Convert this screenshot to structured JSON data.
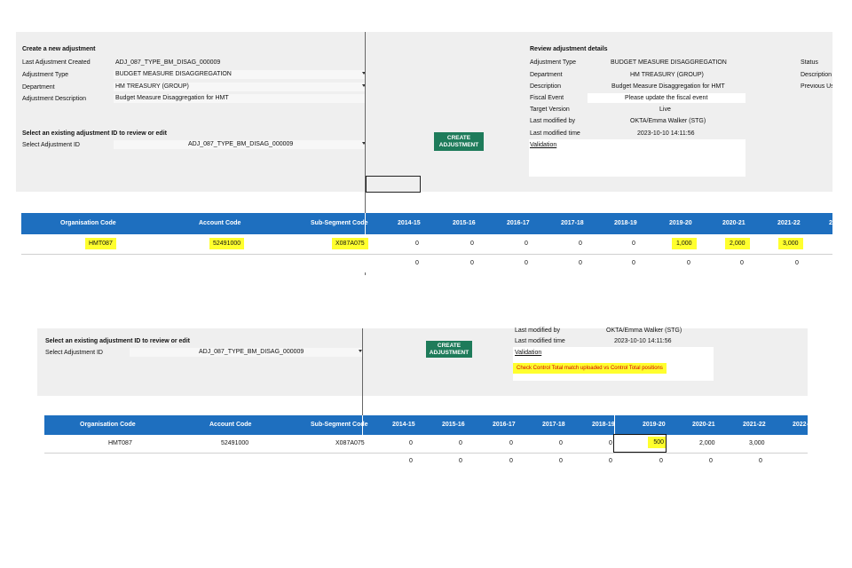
{
  "top": {
    "create_title": "Create a new adjustment",
    "fields": [
      {
        "label": "Last Adjustment Created",
        "value": "ADJ_087_TYPE_BM_DISAG_000009"
      },
      {
        "label": "Adjustment Type",
        "value": "BUDGET MEASURE DISAGGREGATION"
      },
      {
        "label": "Department",
        "value": "HM TREASURY (GROUP)"
      },
      {
        "label": "Adjustment Description",
        "value": "Budget Measure Disaggregation for HMT"
      }
    ],
    "existing_title": "Select an existing adjustment ID to review or edit",
    "select_label": "Select Adjustment ID",
    "select_value": "ADJ_087_TYPE_BM_DISAG_000009",
    "create_button": "CREATE ADJUSTMENT",
    "review_title": "Review adjustment details",
    "review": [
      {
        "label": "Adjustment Type",
        "value": "BUDGET MEASURE DISAGGREGATION"
      },
      {
        "label": "Department",
        "value": "HM TREASURY (GROUP)"
      },
      {
        "label": "Description",
        "value": "Budget Measure Disaggregation for HMT"
      },
      {
        "label": "Fiscal Event",
        "value": "Please update the fiscal event"
      },
      {
        "label": "Target Version",
        "value": "Live"
      },
      {
        "label": "Last modified by",
        "value": "OKTA/Emma Walker (STG)"
      },
      {
        "label": "Last modified time",
        "value": "2023-10-10 14:11:56"
      }
    ],
    "validation_label": "Validation",
    "right_labels": [
      "Status",
      "Description",
      "Previous Us"
    ]
  },
  "grid1": {
    "headers": [
      "Organisation Code",
      "Account Code",
      "Sub-Segment Code",
      "2014-15",
      "2015-16",
      "2016-17",
      "2017-18",
      "2018-19",
      "2019-20",
      "2020-21",
      "2021-22",
      "2"
    ],
    "row1": [
      "HMT087",
      "52491000",
      "X087A075",
      "0",
      "0",
      "0",
      "0",
      "0",
      "1,000",
      "2,000",
      "3,000"
    ],
    "row2": [
      "0",
      "0",
      "0",
      "0",
      "0",
      "0",
      "0",
      "0"
    ]
  },
  "bottom": {
    "existing_title": "Select an existing adjustment ID to review or edit",
    "select_label": "Select Adjustment ID",
    "select_value": "ADJ_087_TYPE_BM_DISAG_000009",
    "create_button": "CREATE ADJUSTMENT",
    "review": [
      {
        "label": "Last modified by",
        "value": "OKTA/Emma Walker (STG)"
      },
      {
        "label": "Last modified time",
        "value": "2023-10-10 14:11:56"
      }
    ],
    "validation_label": "Validation",
    "validation_message": "Check Control Total match uploaded vs Control Total positions"
  },
  "grid2": {
    "headers": [
      "Organisation Code",
      "Account Code",
      "Sub-Segment Code",
      "2014-15",
      "2015-16",
      "2016-17",
      "2017-18",
      "2018-19",
      "2019-20",
      "2020-21",
      "2021-22",
      "2022-"
    ],
    "row1": [
      "HMT087",
      "52491000",
      "X087A075",
      "0",
      "0",
      "0",
      "0",
      "0",
      "500",
      "2,000",
      "3,000"
    ],
    "row2": [
      "0",
      "0",
      "0",
      "0",
      "0",
      "0",
      "0",
      "0"
    ]
  },
  "colors": {
    "header_blue": "#1e6fbf",
    "button_green": "#1e7b5a",
    "highlight": "#ffff2e",
    "validation_text": "#d40000"
  }
}
